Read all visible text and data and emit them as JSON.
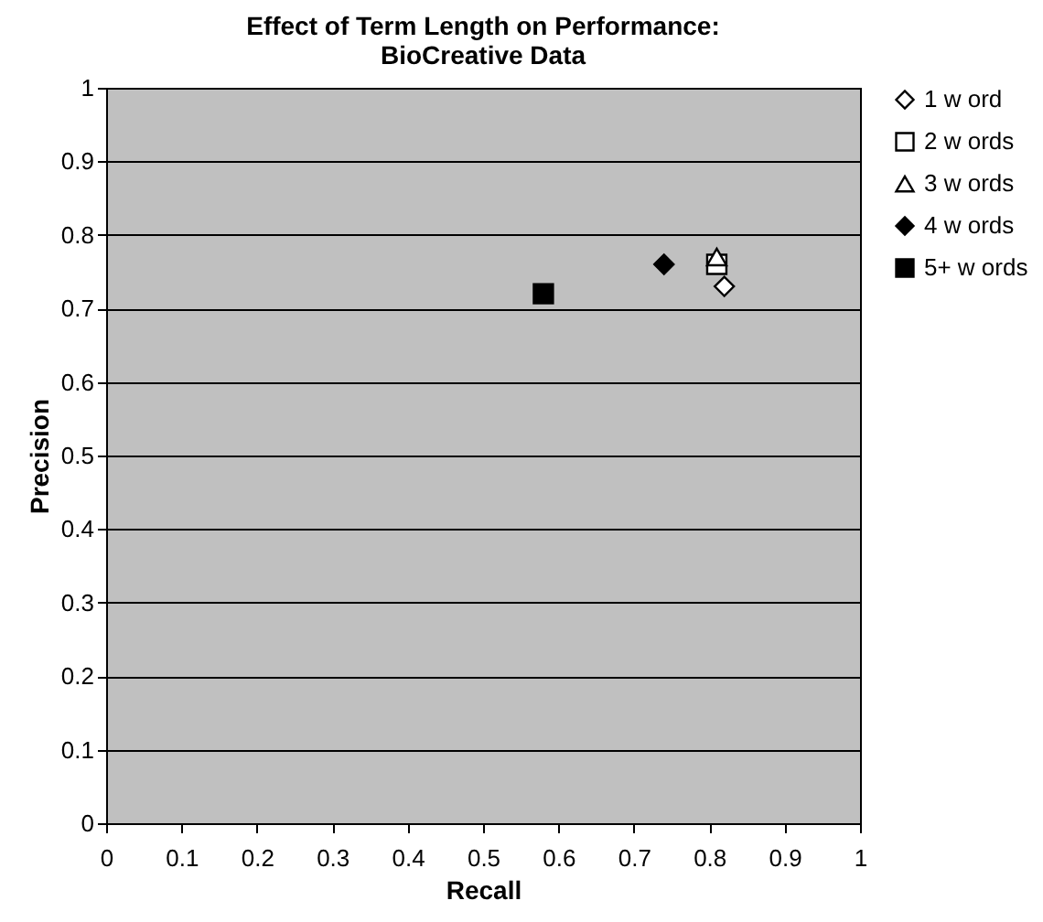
{
  "chart_data": {
    "type": "scatter",
    "title": "Effect of Term Length on Performance: BioCreative Data",
    "xlabel": "Recall",
    "ylabel": "Precision",
    "series": [
      {
        "name": "1 w ord",
        "color": "#ffffff",
        "marker": "diamond",
        "x": [
          0.82
        ],
        "values": [
          0.73
        ]
      },
      {
        "name": "2 w ords",
        "color": "#ffffff",
        "marker": "square",
        "x": [
          0.81
        ],
        "values": [
          0.76
        ]
      },
      {
        "name": "3 w ords",
        "color": "#ffffff",
        "marker": "triangle",
        "x": [
          0.81
        ],
        "values": [
          0.77
        ]
      },
      {
        "name": "4 w ords",
        "color": "#000000",
        "marker": "diamond",
        "x": [
          0.74
        ],
        "values": [
          0.76
        ]
      },
      {
        "name": "5+ w ords",
        "color": "#000000",
        "marker": "square",
        "x": [
          0.58
        ],
        "values": [
          0.72
        ]
      }
    ],
    "xlim": [
      0,
      1
    ],
    "xticks": [
      0,
      0.1,
      0.2,
      0.3,
      0.4,
      0.5,
      0.6,
      0.7,
      0.8,
      0.9,
      1
    ],
    "ylim": [
      0,
      1
    ],
    "yticks": [
      0,
      0.1,
      0.2,
      0.3,
      0.4,
      0.5,
      0.6,
      0.7,
      0.8,
      0.9,
      1
    ],
    "grid": "y",
    "legend": "right"
  }
}
